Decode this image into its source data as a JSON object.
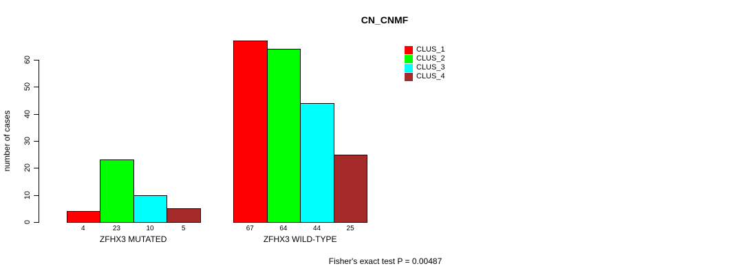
{
  "chart_data": {
    "type": "bar",
    "title": "CN_CNMF",
    "ylabel": "number of cases",
    "xlabel": "",
    "ylim": [
      0,
      67
    ],
    "y_ticks": [
      0,
      10,
      20,
      30,
      40,
      50,
      60
    ],
    "grid": false,
    "legend_position": "top-right",
    "bar_border_color": "#000000",
    "series": [
      {
        "name": "CLUS_1",
        "color": "#FF0000"
      },
      {
        "name": "CLUS_2",
        "color": "#00FF00"
      },
      {
        "name": "CLUS_3",
        "color": "#00FFFF"
      },
      {
        "name": "CLUS_4",
        "color": "#A52A2A"
      }
    ],
    "groups": [
      {
        "label": "ZFHX3 MUTATED",
        "values": [
          4,
          23,
          10,
          5
        ]
      },
      {
        "label": "ZFHX3 WILD-TYPE",
        "values": [
          67,
          64,
          44,
          25
        ]
      }
    ]
  },
  "footer": {
    "note": "Fisher's exact test P = 0.00487"
  }
}
